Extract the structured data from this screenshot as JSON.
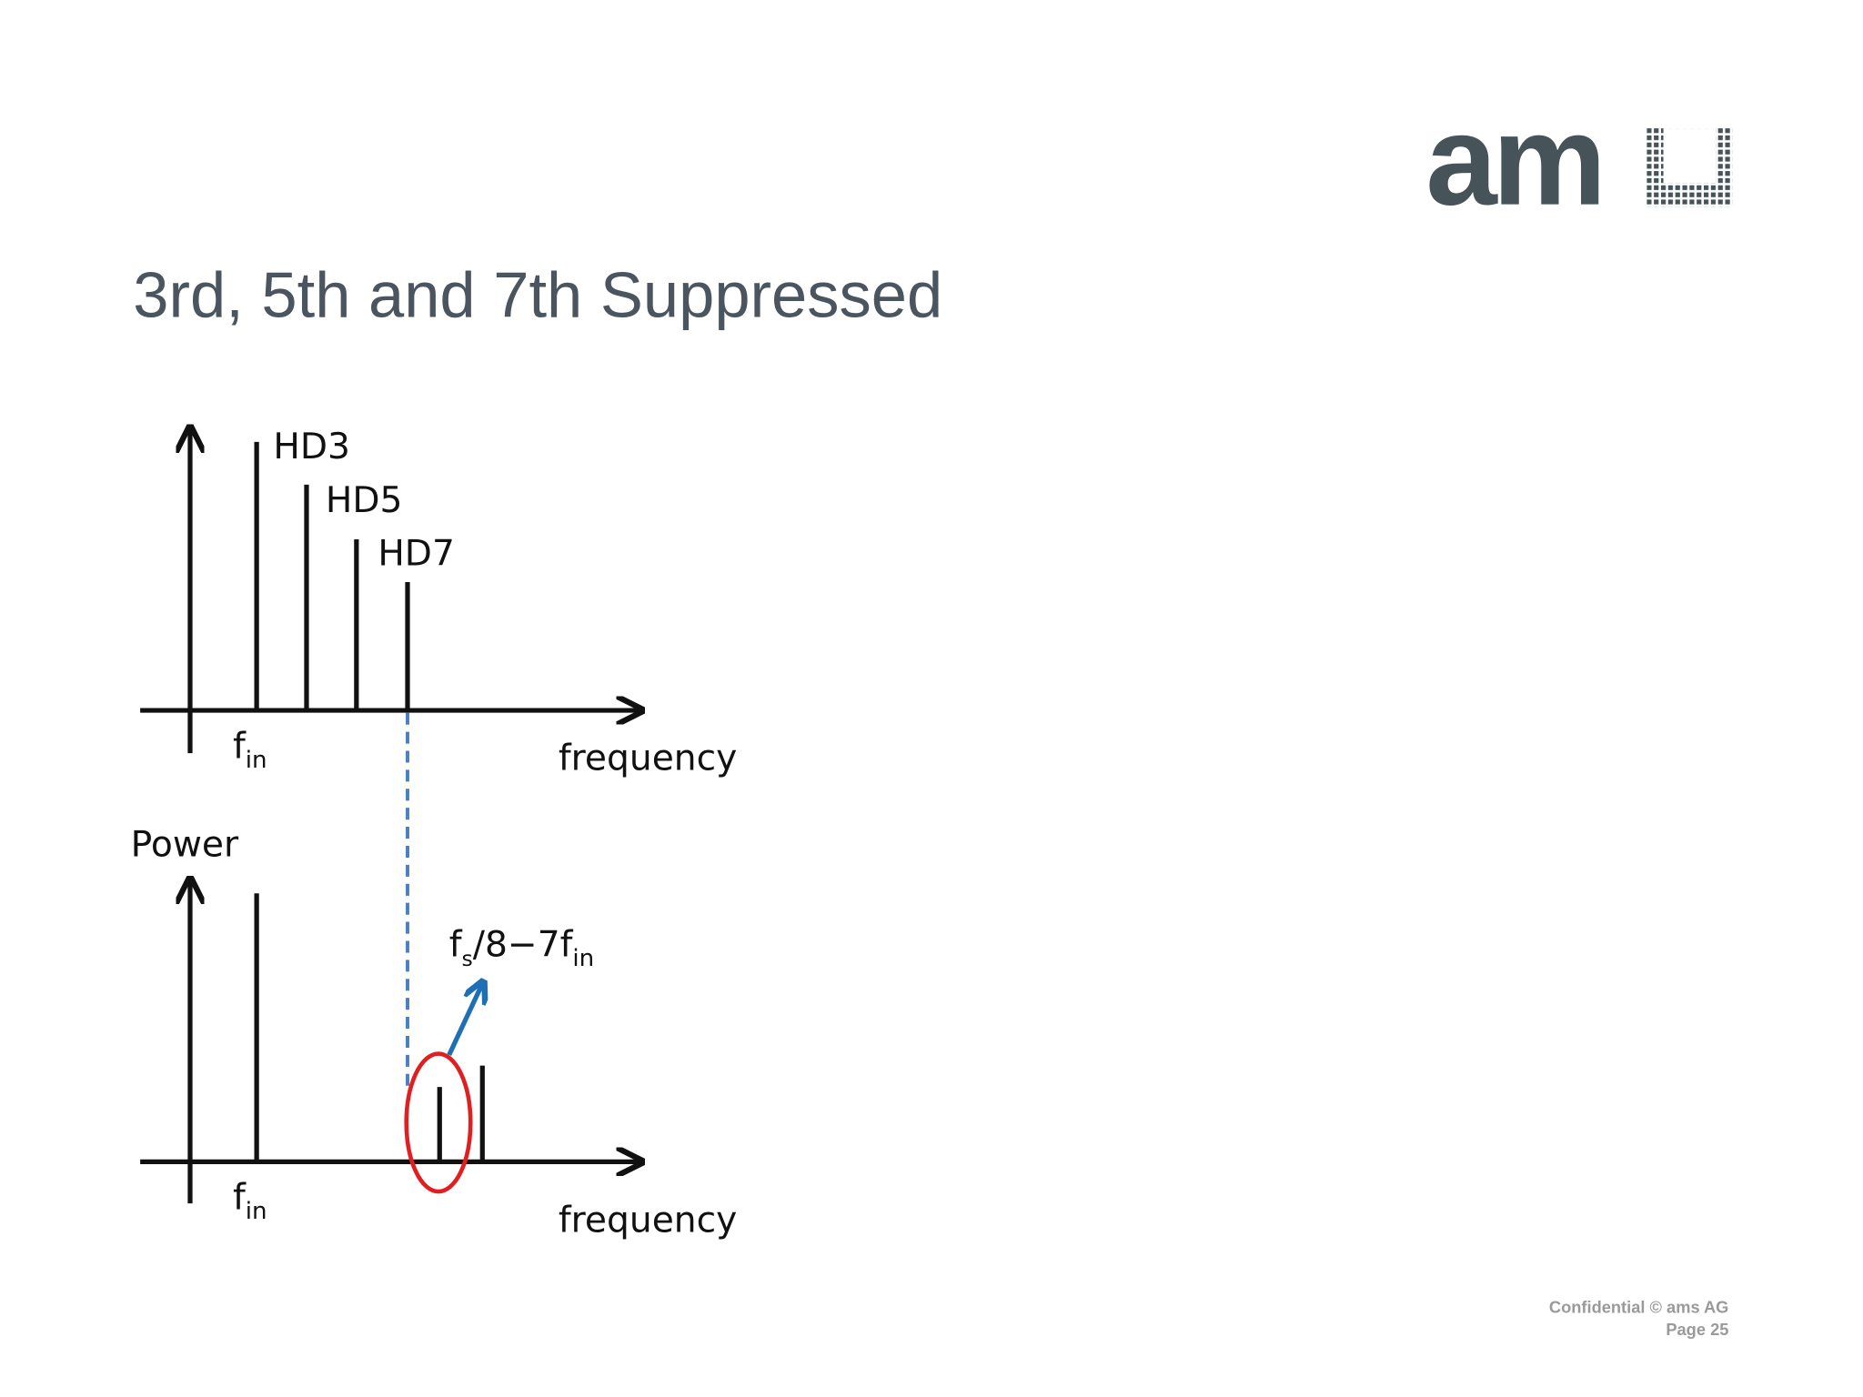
{
  "logo": "am",
  "title": "3rd, 5th and 7th Suppressed",
  "top": {
    "hd3": "HD3",
    "hd5": "HD5",
    "hd7": "HD7",
    "fin": {
      "base": "f",
      "sub": "in"
    },
    "axis": "frequency"
  },
  "bottom": {
    "y_axis": "Power",
    "fin": {
      "base": "f",
      "sub": "in"
    },
    "axis": "frequency",
    "annotation": {
      "f": "f",
      "s": "s",
      "mid": "/8−7f",
      "in": "in"
    }
  },
  "footer": {
    "confidential": "Confidential © ams AG",
    "page": "Page 25"
  }
}
